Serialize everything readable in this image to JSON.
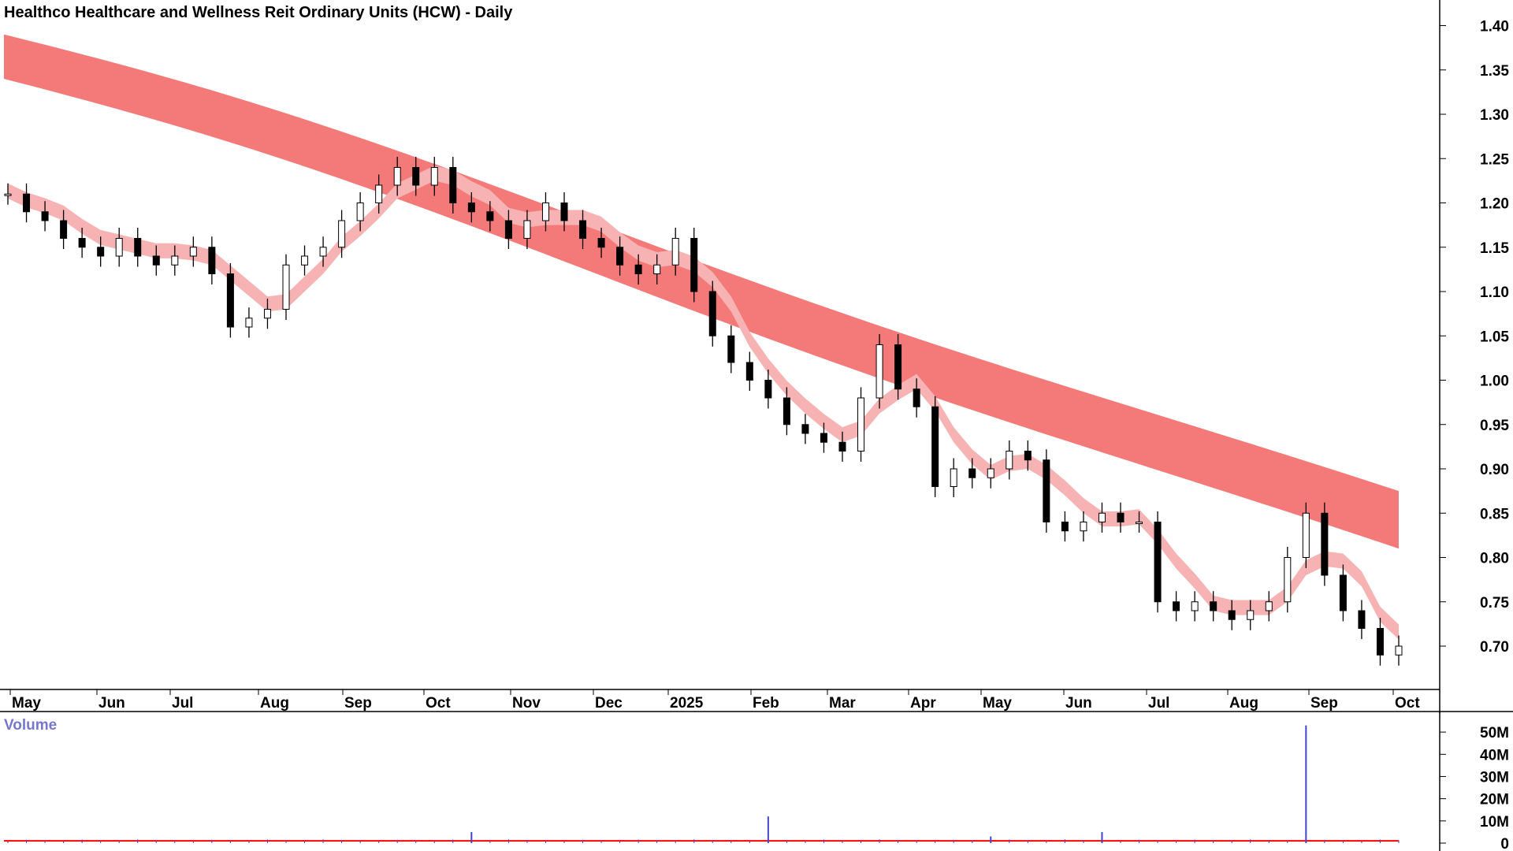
{
  "chart_data": {
    "type": "candlestick",
    "title": "Healthco Healthcare and Wellness Reit Ordinary Units (HCW) - Daily",
    "y_axis": {
      "min": 0.66,
      "max": 1.42,
      "ticks": [
        "1.40",
        "1.35",
        "1.30",
        "1.25",
        "1.20",
        "1.15",
        "1.10",
        "1.05",
        "1.00",
        "0.95",
        "0.90",
        "0.85",
        "0.80",
        "0.75",
        "0.70"
      ]
    },
    "x_axis": {
      "labels": [
        "May",
        "Jun",
        "Jul",
        "Aug",
        "Sep",
        "Oct",
        "Nov",
        "Dec",
        "2025",
        "Feb",
        "Mar",
        "Apr",
        "May",
        "Jun",
        "Jul",
        "Aug",
        "Sep",
        "Oct"
      ]
    },
    "price_closes": [
      1.21,
      1.19,
      1.18,
      1.16,
      1.15,
      1.14,
      1.16,
      1.14,
      1.13,
      1.14,
      1.15,
      1.12,
      1.06,
      1.07,
      1.08,
      1.13,
      1.14,
      1.15,
      1.18,
      1.2,
      1.22,
      1.24,
      1.22,
      1.24,
      1.2,
      1.19,
      1.18,
      1.16,
      1.18,
      1.2,
      1.18,
      1.16,
      1.15,
      1.13,
      1.12,
      1.13,
      1.16,
      1.1,
      1.05,
      1.02,
      1.0,
      0.98,
      0.95,
      0.94,
      0.93,
      0.92,
      0.98,
      1.04,
      0.99,
      0.97,
      0.88,
      0.9,
      0.89,
      0.9,
      0.92,
      0.91,
      0.84,
      0.83,
      0.84,
      0.85,
      0.84,
      0.84,
      0.75,
      0.74,
      0.75,
      0.74,
      0.73,
      0.74,
      0.75,
      0.8,
      0.85,
      0.78,
      0.74,
      0.72,
      0.69,
      0.7
    ],
    "long_ma_band": {
      "upper_start": 1.39,
      "upper_end": 0.875,
      "lower_start": 1.34,
      "lower_end": 0.81,
      "color": "#f47a7a"
    },
    "short_ma_band": {
      "color_down": "#f7b3b3",
      "color_up": "#33ee33",
      "color_flat": "#ff6611"
    },
    "volume": {
      "label": "Volume",
      "ticks": [
        "50M",
        "40M",
        "30M",
        "20M",
        "10M",
        "0"
      ],
      "max": 55,
      "baseline_color": "#ff0000",
      "bar_color": "#4444cc",
      "spikes": [
        {
          "x_index": 70,
          "value": 53
        },
        {
          "x_index": 41,
          "value": 12
        },
        {
          "x_index": 25,
          "value": 5
        },
        {
          "x_index": 59,
          "value": 5
        },
        {
          "x_index": 53,
          "value": 3
        }
      ]
    }
  }
}
